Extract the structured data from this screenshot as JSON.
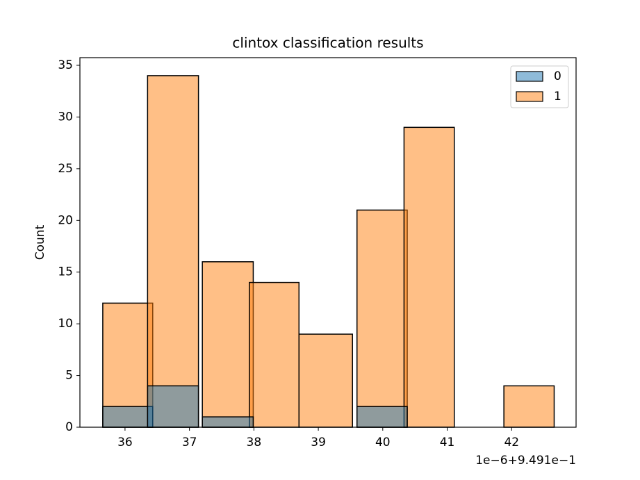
{
  "chart_data": {
    "type": "histogram",
    "title": "clintox classification results",
    "y_label": "Count",
    "x_offset_label": "1e−6+9.491e−1",
    "xlim": [
      35.3,
      43.0
    ],
    "ylim": [
      0,
      35.74
    ],
    "xticks": [
      36,
      37,
      38,
      39,
      40,
      41,
      42
    ],
    "yticks": [
      0,
      5,
      10,
      15,
      20,
      25,
      30,
      35
    ],
    "legend_position": "upper right",
    "series": [
      {
        "name": "0",
        "color": "#1f77b4",
        "x_start": [
          35.655,
          36.35,
          37.2,
          39.6
        ],
        "x_end": [
          36.43,
          37.14,
          37.99,
          40.38
        ],
        "values": [
          2,
          4,
          1,
          2
        ]
      },
      {
        "name": "1",
        "color": "#ff7f0e",
        "x_start": [
          35.655,
          36.35,
          37.2,
          37.93,
          38.7,
          39.6,
          40.33,
          41.88
        ],
        "x_end": [
          36.43,
          37.14,
          37.99,
          38.7,
          39.53,
          40.38,
          41.11,
          42.66
        ],
        "values": [
          12,
          34,
          16,
          14,
          9,
          21,
          29,
          4
        ]
      }
    ]
  }
}
